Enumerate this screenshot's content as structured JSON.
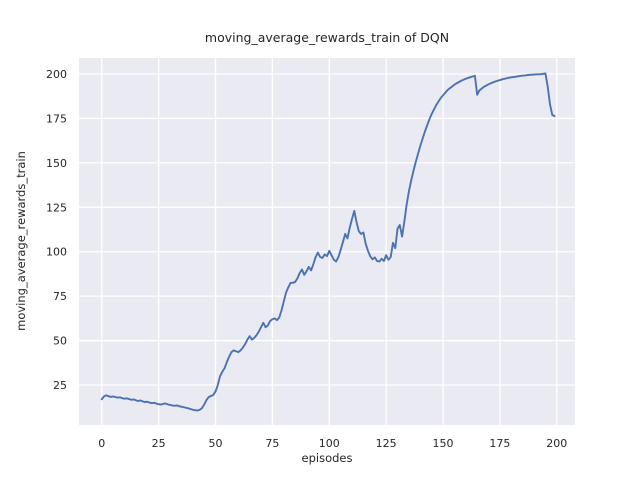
{
  "chart_data": {
    "type": "line",
    "title": "moving_average_rewards_train of DQN",
    "xlabel": "episodes",
    "ylabel": "moving_average_rewards_train",
    "x_start": 0,
    "x_step": 1,
    "xticks": [
      0,
      25,
      50,
      75,
      100,
      125,
      150,
      175,
      200
    ],
    "yticks": [
      25,
      50,
      75,
      100,
      125,
      150,
      175,
      200
    ],
    "xlim": [
      -10,
      208
    ],
    "ylim": [
      2.5,
      209
    ],
    "grid": true,
    "legend": "none",
    "plot_bg_color": "#EAEAF2",
    "grid_color": "#FFFFFF",
    "line_color": "#4C72B0",
    "text_color": "#262626",
    "series": [
      {
        "name": "moving_average_rewards_train",
        "values": [
          17.0,
          18.6,
          19.2,
          18.7,
          18.3,
          18.6,
          18.2,
          17.9,
          18.1,
          17.6,
          17.3,
          17.5,
          17.1,
          16.7,
          16.9,
          16.4,
          16.0,
          16.3,
          15.8,
          15.4,
          15.6,
          15.1,
          14.8,
          15.0,
          14.5,
          14.2,
          14.0,
          14.4,
          14.6,
          14.1,
          13.8,
          13.5,
          13.3,
          13.5,
          13.1,
          12.8,
          12.5,
          12.2,
          11.9,
          11.5,
          11.1,
          10.8,
          10.7,
          11.0,
          11.9,
          14.0,
          16.5,
          18.2,
          18.8,
          19.4,
          21.3,
          25.0,
          30.0,
          32.5,
          34.5,
          38.0,
          41.0,
          43.5,
          44.5,
          44.0,
          43.5,
          44.5,
          46.0,
          48.0,
          50.5,
          52.5,
          50.5,
          51.5,
          53.0,
          55.0,
          57.5,
          60.0,
          57.5,
          58.5,
          61.0,
          62.0,
          62.5,
          61.5,
          63.0,
          67.0,
          72.0,
          77.0,
          80.0,
          82.5,
          82.5,
          83.0,
          85.0,
          88.0,
          90.0,
          87.0,
          89.0,
          91.5,
          89.5,
          93.0,
          97.0,
          99.5,
          97.0,
          96.5,
          98.5,
          97.5,
          100.5,
          98.0,
          95.5,
          94.5,
          97.0,
          101.0,
          105.5,
          110.0,
          107.5,
          113.5,
          118.5,
          123.0,
          116.5,
          111.5,
          110.0,
          110.8,
          104.5,
          100.5,
          97.5,
          95.7,
          96.8,
          94.8,
          94.5,
          96.0,
          94.8,
          98.0,
          95.5,
          97.0,
          105.0,
          102.0,
          113.0,
          115.0,
          108.5,
          117.0,
          126.5,
          134.0,
          140.0,
          145.5,
          150.5,
          155.0,
          159.5,
          163.5,
          167.5,
          171.0,
          174.5,
          177.5,
          180.0,
          182.5,
          184.5,
          186.5,
          188.0,
          189.5,
          191.0,
          192.0,
          193.0,
          194.0,
          194.8,
          195.5,
          196.2,
          196.8,
          197.3,
          197.8,
          198.2,
          198.6,
          199.0,
          188.3,
          190.8,
          191.8,
          192.8,
          193.5,
          194.2,
          194.8,
          195.3,
          195.8,
          196.2,
          196.6,
          197.0,
          197.3,
          197.6,
          197.9,
          198.1,
          198.3,
          198.5,
          198.7,
          198.9,
          199.1,
          199.2,
          199.4,
          199.5,
          199.6,
          199.7,
          199.8,
          199.8,
          199.9,
          200.1,
          200.3,
          193.0,
          183.0,
          177.0,
          176.3
        ]
      }
    ]
  }
}
